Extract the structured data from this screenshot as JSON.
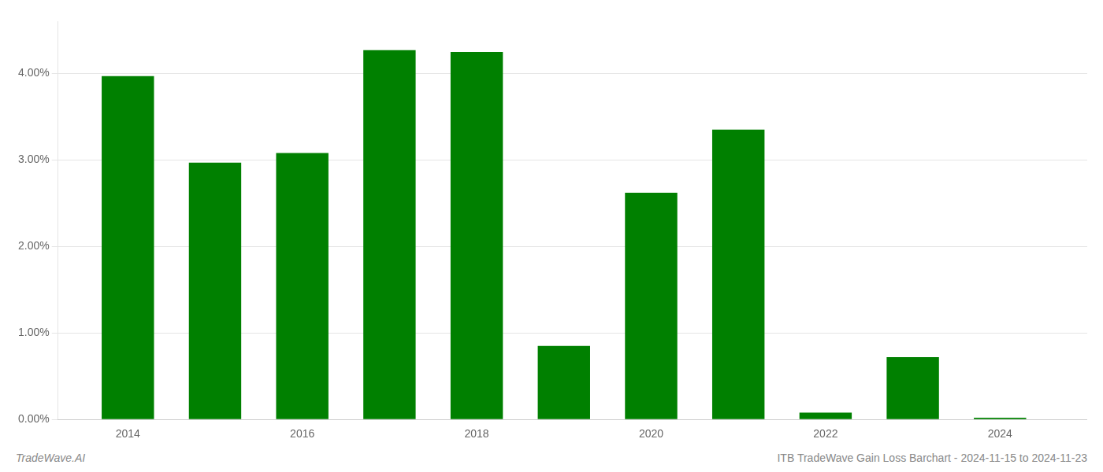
{
  "chart_data": {
    "type": "bar",
    "x": [
      2014,
      2015,
      2016,
      2017,
      2018,
      2019,
      2020,
      2021,
      2022,
      2023,
      2024
    ],
    "values": [
      0.0397,
      0.0297,
      0.0308,
      0.0427,
      0.0425,
      0.0085,
      0.0262,
      0.0335,
      0.0008,
      0.0072,
      0.0002
    ],
    "color": "#008000",
    "xlim": [
      2013.2,
      2025.0
    ],
    "xticks": [
      2014,
      2016,
      2018,
      2020,
      2022,
      2024
    ],
    "ylim": [
      0,
      0.046
    ],
    "yticks": [
      {
        "value": 0.0,
        "label": "0.00%"
      },
      {
        "value": 0.01,
        "label": "1.00%"
      },
      {
        "value": 0.02,
        "label": "2.00%"
      },
      {
        "value": 0.03,
        "label": "3.00%"
      },
      {
        "value": 0.04,
        "label": "4.00%"
      }
    ],
    "grid": true,
    "annotations": [
      "TradeWave.AI",
      "ITB TradeWave Gain Loss Barchart - 2024-11-15 to 2024-11-23"
    ]
  }
}
